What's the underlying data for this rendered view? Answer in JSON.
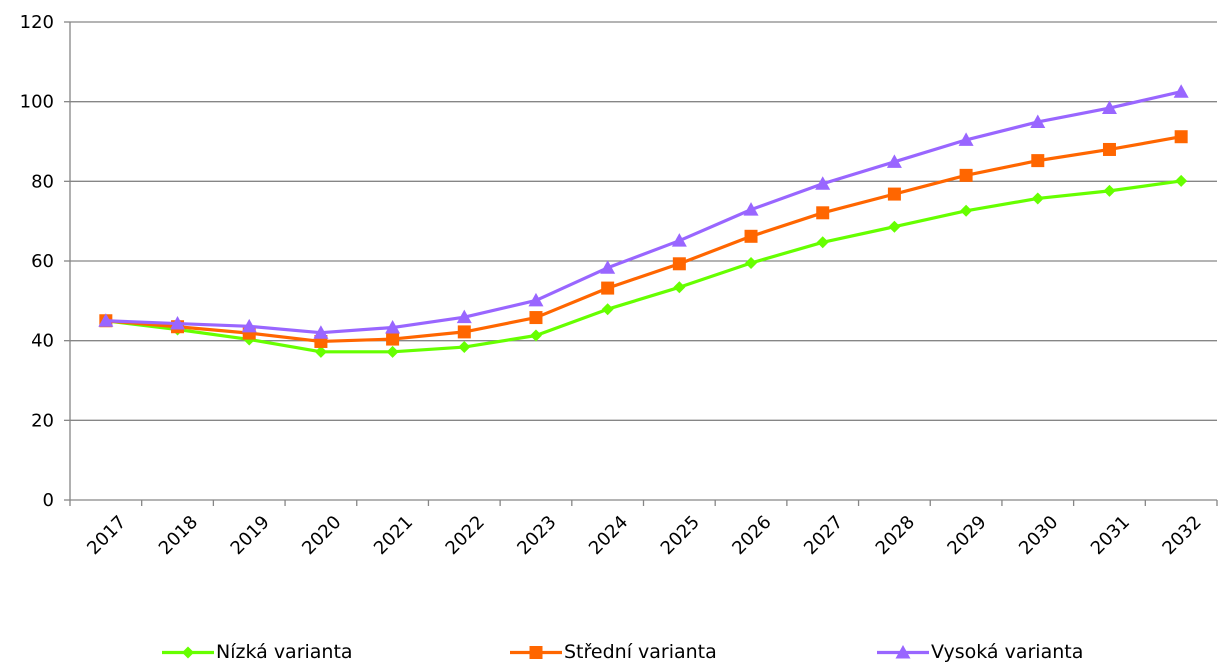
{
  "chart_data": {
    "type": "line",
    "title": "",
    "xlabel": "",
    "ylabel": "",
    "categories": [
      "2017",
      "2018",
      "2019",
      "2020",
      "2021",
      "2022",
      "2023",
      "2024",
      "2025",
      "2026",
      "2027",
      "2028",
      "2029",
      "2030",
      "2031",
      "2032"
    ],
    "ylim": [
      0,
      120
    ],
    "yticks": [
      0,
      20,
      40,
      60,
      80,
      100,
      120
    ],
    "grid": "horizontal",
    "legend_position": "bottom",
    "series": [
      {
        "name": "Nízká varianta",
        "color": "#66ff00",
        "marker": "diamond",
        "values": [
          45,
          42.8,
          40.3,
          37.2,
          37.2,
          38.4,
          41.3,
          47.9,
          53.4,
          59.5,
          64.7,
          68.6,
          72.6,
          75.7,
          77.6,
          80.1
        ]
      },
      {
        "name": "Střední varianta",
        "color": "#ff6600",
        "marker": "square",
        "values": [
          45,
          43.5,
          41.9,
          39.8,
          40.4,
          42.2,
          45.8,
          53.2,
          59.3,
          66.2,
          72.1,
          76.8,
          81.5,
          85.2,
          88,
          91.2
        ]
      },
      {
        "name": "Vysoká varianta",
        "color": "#9966ff",
        "marker": "triangle",
        "values": [
          45,
          44.3,
          43.6,
          42,
          43.3,
          45.9,
          50.1,
          58.3,
          65.1,
          72.9,
          79.4,
          84.9,
          90.4,
          94.9,
          98.4,
          102.5
        ]
      }
    ]
  }
}
